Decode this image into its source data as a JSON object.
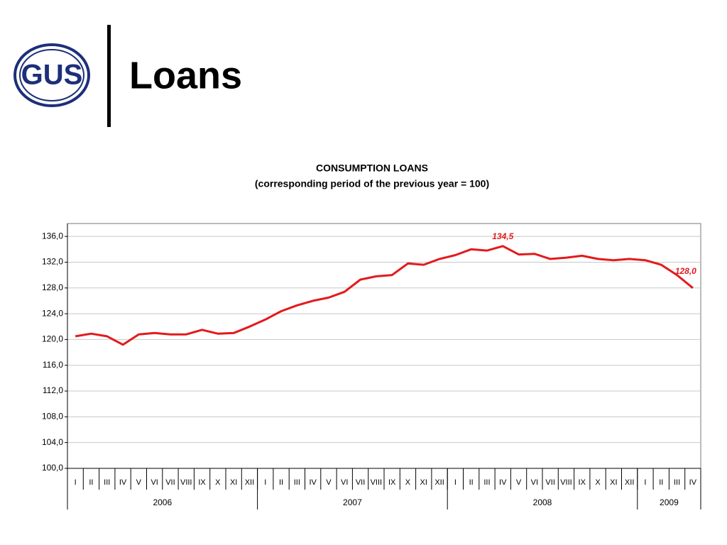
{
  "header": {
    "logo": "GUS",
    "title": "Loans"
  },
  "chart_data": {
    "type": "line",
    "title": "CONSUMPTION LOANS",
    "subtitle": "(corresponding period of the previous year = 100)",
    "categories": [
      "I",
      "II",
      "III",
      "IV",
      "V",
      "VI",
      "VII",
      "VIII",
      "IX",
      "X",
      "XI",
      "XII",
      "I",
      "II",
      "III",
      "IV",
      "V",
      "VI",
      "VII",
      "VIII",
      "IX",
      "X",
      "XI",
      "XII",
      "I",
      "II",
      "III",
      "IV",
      "V",
      "VI",
      "VII",
      "VIII",
      "IX",
      "X",
      "XI",
      "XII",
      "I",
      "II",
      "III",
      "IV"
    ],
    "year_groups": [
      {
        "label": "2006",
        "span": 12
      },
      {
        "label": "2007",
        "span": 12
      },
      {
        "label": "2008",
        "span": 12
      },
      {
        "label": "2009",
        "span": 4
      }
    ],
    "series": [
      {
        "name": "Consumption loans",
        "color": "#e31a1c",
        "values": [
          120.5,
          120.9,
          120.5,
          119.2,
          120.8,
          121.0,
          120.8,
          120.8,
          121.5,
          120.9,
          121.0,
          122.0,
          123.1,
          124.4,
          125.3,
          126.0,
          126.5,
          127.4,
          129.3,
          129.8,
          130.0,
          131.8,
          131.6,
          132.5,
          133.1,
          134.0,
          133.8,
          134.5,
          133.2,
          133.3,
          132.5,
          132.7,
          133.0,
          132.5,
          132.3,
          132.5,
          132.3,
          131.6,
          130.0,
          128.0
        ],
        "value_labels": [
          null,
          null,
          null,
          null,
          null,
          null,
          null,
          null,
          null,
          null,
          null,
          null,
          null,
          null,
          null,
          null,
          null,
          null,
          null,
          null,
          null,
          null,
          null,
          null,
          null,
          null,
          null,
          "134,5",
          null,
          null,
          null,
          null,
          null,
          null,
          null,
          null,
          null,
          null,
          null,
          "128,0"
        ]
      }
    ],
    "ylim": [
      100,
      138
    ],
    "yticks": [
      {
        "value": 100,
        "label": "100,0"
      },
      {
        "value": 104,
        "label": "104,0"
      },
      {
        "value": 108,
        "label": "108,0"
      },
      {
        "value": 112,
        "label": "112,0"
      },
      {
        "value": 116,
        "label": "116,0"
      },
      {
        "value": 120,
        "label": "120,0"
      },
      {
        "value": 124,
        "label": "124,0"
      },
      {
        "value": 128,
        "label": "128,0"
      },
      {
        "value": 132,
        "label": "132,0"
      },
      {
        "value": 136,
        "label": "136,0"
      }
    ],
    "grid": true
  }
}
